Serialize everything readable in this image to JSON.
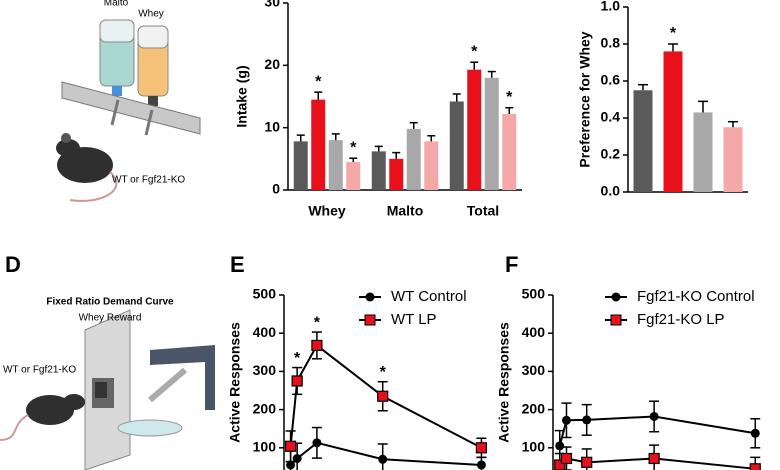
{
  "illustrations": {
    "top": {
      "bottle_left": "Malto",
      "bottle_right": "Whey",
      "mouse": "WT or Fgf21-KO"
    },
    "bottom": {
      "title": "Fixed Ratio Demand Curve",
      "subtitle": "Whey Reward",
      "mouse": "WT or Fgf21-KO"
    }
  },
  "panel_labels": [
    "D",
    "E",
    "F"
  ],
  "chart_data": [
    {
      "type": "bar",
      "y_label": "Intake (g)",
      "categories": [
        "Whey",
        "Malto",
        "Total"
      ],
      "series": [
        {
          "color": "#5a5a5a",
          "values": [
            7.8,
            6.2,
            14.2
          ],
          "errors": [
            1.0,
            0.8,
            1.2
          ],
          "significance": [
            null,
            null,
            null
          ]
        },
        {
          "color": "#e8101a",
          "values": [
            14.5,
            5.0,
            19.3
          ],
          "errors": [
            1.2,
            1.0,
            1.2
          ],
          "significance": [
            "*",
            null,
            "*"
          ]
        },
        {
          "color": "#a8a8a8",
          "values": [
            8.0,
            9.8,
            18.0
          ],
          "errors": [
            1.0,
            1.0,
            1.0
          ],
          "significance": [
            null,
            null,
            null
          ]
        },
        {
          "color": "#f4a8a8",
          "values": [
            4.5,
            7.8,
            12.2
          ],
          "errors": [
            0.6,
            0.9,
            1.0
          ],
          "significance": [
            "*",
            null,
            "*"
          ]
        }
      ],
      "ylim": [
        0,
        30
      ],
      "yticks": [
        0,
        10,
        20,
        30
      ]
    },
    {
      "type": "bar",
      "y_label": "Preference for  Whey",
      "values": [
        0.55,
        0.76,
        0.43,
        0.35
      ],
      "errors": [
        0.03,
        0.04,
        0.06,
        0.03
      ],
      "colors": [
        "#5a5a5a",
        "#e8101a",
        "#a8a8a8",
        "#f4a8a8"
      ],
      "significance": [
        null,
        "*",
        null,
        null
      ],
      "ylim": [
        0,
        1
      ],
      "yticks": [
        {
          "value": 0,
          "label": "0.0"
        },
        0.2,
        0.4,
        0.6,
        0.8,
        {
          "value": 1,
          "label": "1.0"
        }
      ]
    },
    {
      "type": "line",
      "y_label": "Active  Responses",
      "x": [
        1,
        2,
        5,
        15,
        30
      ],
      "xlim": [
        0,
        31
      ],
      "series": [
        {
          "name": "WT Control",
          "color": "#000000",
          "marker": "circle",
          "values": [
            55,
            72,
            113,
            70,
            55
          ],
          "errors": [
            45,
            40,
            40,
            40,
            20
          ],
          "significance": [
            null,
            null,
            null,
            null,
            null
          ]
        },
        {
          "name": "WT LP",
          "color": "#e8101a",
          "marker": "square",
          "values": [
            104,
            275,
            368,
            235,
            100
          ],
          "errors": [
            40,
            35,
            35,
            38,
            25
          ],
          "significance": [
            null,
            "*",
            "*",
            "*",
            null
          ]
        }
      ],
      "ylim": [
        0,
        500
      ],
      "yticks": [
        100,
        200,
        300,
        400,
        500
      ]
    },
    {
      "type": "line",
      "y_label": "Active  Responses",
      "x": [
        1,
        2,
        5,
        15,
        30
      ],
      "xlim": [
        0,
        31
      ],
      "series": [
        {
          "name": "Fgf21-KO Control",
          "color": "#000000",
          "marker": "circle",
          "values": [
            105,
            172,
            173,
            182,
            138
          ],
          "errors": [
            40,
            45,
            40,
            40,
            38
          ],
          "significance": [
            null,
            null,
            null,
            null,
            null
          ]
        },
        {
          "name": "Fgf21-KO LP",
          "color": "#e8101a",
          "marker": "square",
          "values": [
            55,
            72,
            62,
            72,
            45
          ],
          "errors": [
            30,
            30,
            35,
            35,
            30
          ],
          "significance": [
            null,
            null,
            null,
            null,
            null
          ]
        }
      ],
      "ylim": [
        0,
        500
      ],
      "yticks": [
        100,
        200,
        300,
        400,
        500
      ]
    }
  ]
}
